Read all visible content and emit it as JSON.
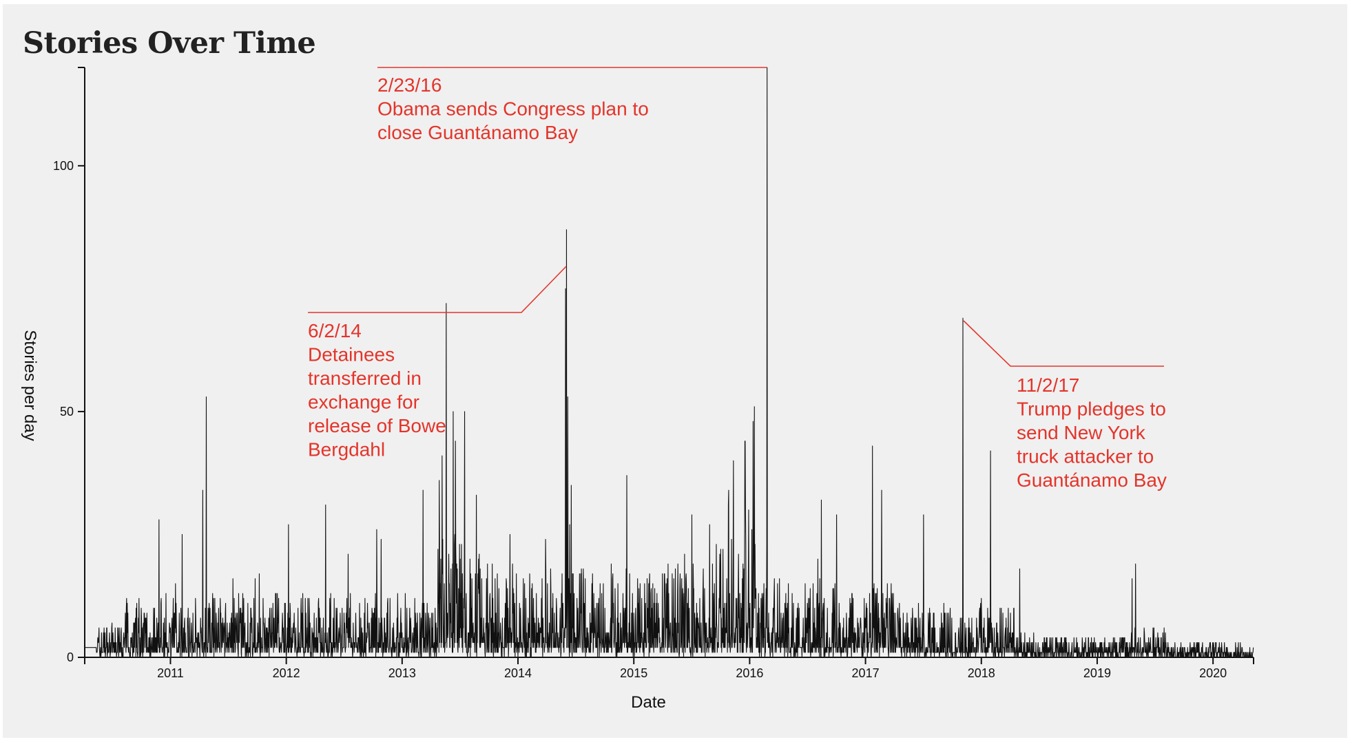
{
  "title": "Stories Over Time",
  "chart_data": {
    "type": "line",
    "xlabel": "Date",
    "ylabel": "Stories per day",
    "xlim": [
      2010.26,
      2020.35
    ],
    "ylim": [
      0,
      120
    ],
    "x_ticks": [
      "2011",
      "2012",
      "2013",
      "2014",
      "2015",
      "2016",
      "2017",
      "2018",
      "2019",
      "2020"
    ],
    "y_ticks": [
      "0",
      "50",
      "100"
    ],
    "series_color": "#111111",
    "annotation_color": "#e4342a",
    "baseline_stories": 2,
    "spikes": [
      {
        "t": 2010.9,
        "v": 28
      },
      {
        "t": 2011.28,
        "v": 34
      },
      {
        "t": 2011.31,
        "v": 53
      },
      {
        "t": 2011.1,
        "v": 25
      },
      {
        "t": 2012.02,
        "v": 27
      },
      {
        "t": 2012.34,
        "v": 31
      },
      {
        "t": 2012.78,
        "v": 26
      },
      {
        "t": 2013.18,
        "v": 34
      },
      {
        "t": 2013.32,
        "v": 36
      },
      {
        "t": 2013.38,
        "v": 72
      },
      {
        "t": 2013.44,
        "v": 50
      },
      {
        "t": 2013.46,
        "v": 44
      },
      {
        "t": 2013.54,
        "v": 50
      },
      {
        "t": 2013.64,
        "v": 33
      },
      {
        "t": 2013.93,
        "v": 25
      },
      {
        "t": 2014.41,
        "v": 75
      },
      {
        "t": 2014.42,
        "v": 87
      },
      {
        "t": 2014.43,
        "v": 53
      },
      {
        "t": 2014.46,
        "v": 35
      },
      {
        "t": 2014.94,
        "v": 37
      },
      {
        "t": 2015.5,
        "v": 29
      },
      {
        "t": 2015.82,
        "v": 34
      },
      {
        "t": 2015.86,
        "v": 40
      },
      {
        "t": 2015.96,
        "v": 44
      },
      {
        "t": 2016.03,
        "v": 48
      },
      {
        "t": 2016.04,
        "v": 51
      },
      {
        "t": 2016.15,
        "v": 120
      },
      {
        "t": 2016.62,
        "v": 32
      },
      {
        "t": 2016.75,
        "v": 29
      },
      {
        "t": 2017.06,
        "v": 43
      },
      {
        "t": 2017.14,
        "v": 34
      },
      {
        "t": 2017.5,
        "v": 29
      },
      {
        "t": 2017.84,
        "v": 69
      },
      {
        "t": 2018.08,
        "v": 42
      },
      {
        "t": 2018.33,
        "v": 18
      },
      {
        "t": 2019.33,
        "v": 19
      },
      {
        "t": 2019.3,
        "v": 16
      }
    ],
    "annotations": [
      {
        "date": "2/23/16",
        "lines": [
          "Obama sends Congress plan to",
          "close Guantánamo Bay"
        ]
      },
      {
        "date": "6/2/14",
        "lines": [
          "Detainees",
          "transferred in",
          "exchange for",
          "release of Bowe",
          "Bergdahl"
        ]
      },
      {
        "date": "11/2/17",
        "lines": [
          "Trump pledges to",
          "send New York",
          "truck attacker to",
          "Guantánamo Bay"
        ]
      }
    ]
  }
}
